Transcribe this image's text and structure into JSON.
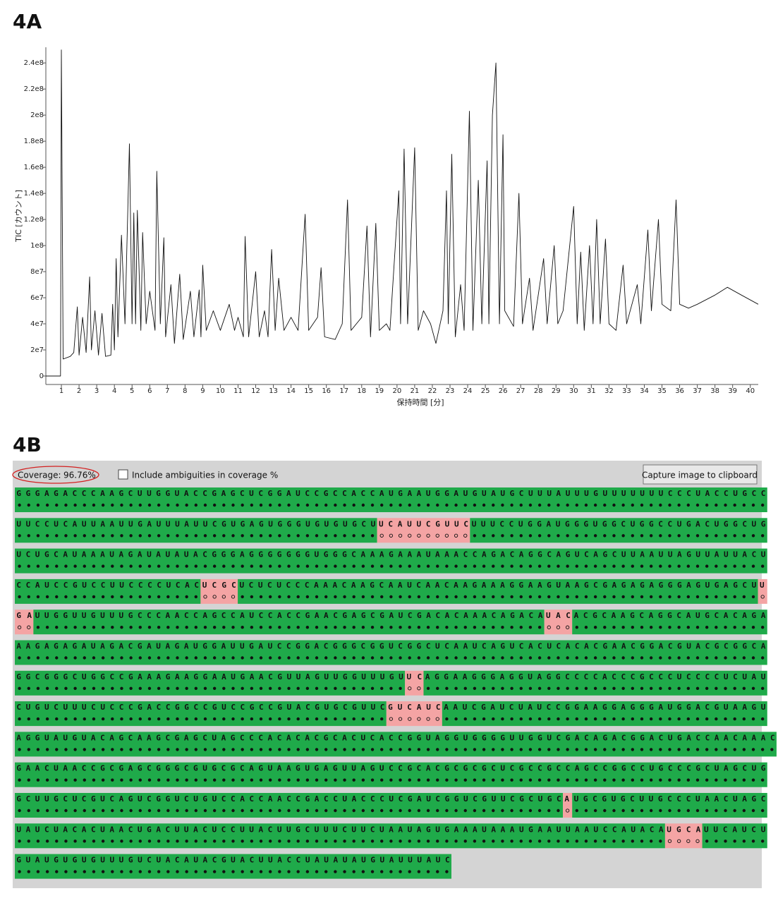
{
  "chart_data": {
    "type": "line",
    "panel_label": "4A",
    "y_label": "TIC [カウント]",
    "x_label": "保持時間 [分]",
    "xlim": [
      0.12,
      40.45
    ],
    "ylim": [
      -6500000.0,
      252000000.0
    ],
    "xticks": [
      1,
      2,
      3,
      4,
      5,
      6,
      7,
      8,
      9,
      10,
      11,
      12,
      13,
      14,
      15,
      16,
      17,
      18,
      19,
      20,
      21,
      22,
      23,
      24,
      25,
      26,
      27,
      28,
      29,
      30,
      31,
      32,
      33,
      34,
      35,
      36,
      37,
      38,
      39,
      40
    ],
    "yticks": [
      0,
      {
        "value": 20000000.0,
        "label": "2e7"
      },
      {
        "value": 40000000.0,
        "label": "4e7"
      },
      {
        "value": 60000000.0,
        "label": "6e7"
      },
      {
        "value": 80000000.0,
        "label": "8e7"
      },
      {
        "value": 100000000.0,
        "label": "1e8"
      },
      {
        "value": 120000000.0,
        "label": "1.2e8"
      },
      {
        "value": 140000000.0,
        "label": "1.4e8"
      },
      {
        "value": 160000000.0,
        "label": "1.6e8"
      },
      {
        "value": 180000000.0,
        "label": "1.8e8"
      },
      {
        "value": 200000000.0,
        "label": "2e8"
      },
      {
        "value": 220000000.0,
        "label": "2.2e8"
      },
      {
        "value": 240000000.0,
        "label": "2.4e8"
      }
    ],
    "series": [
      {
        "color": "#111111",
        "x": [
          0.12,
          0.95,
          1.0,
          1.1,
          1.5,
          1.7,
          1.9,
          2.0,
          2.2,
          2.4,
          2.6,
          2.7,
          2.9,
          3.1,
          3.3,
          3.5,
          3.8,
          3.9,
          4.0,
          4.1,
          4.2,
          4.4,
          4.6,
          4.85,
          5.0,
          5.1,
          5.2,
          5.3,
          5.5,
          5.6,
          5.8,
          6.0,
          6.3,
          6.4,
          6.6,
          6.8,
          6.9,
          7.2,
          7.4,
          7.7,
          7.9,
          8.3,
          8.5,
          8.8,
          8.9,
          9.0,
          9.2,
          9.6,
          10.0,
          10.5,
          10.8,
          11.0,
          11.3,
          11.4,
          11.6,
          12.0,
          12.2,
          12.5,
          12.7,
          12.9,
          13.1,
          13.3,
          13.6,
          14.0,
          14.4,
          14.8,
          15.0,
          15.5,
          15.7,
          15.9,
          16.5,
          16.9,
          17.2,
          17.4,
          18.0,
          18.3,
          18.5,
          18.8,
          19.0,
          19.4,
          19.6,
          20.1,
          20.2,
          20.4,
          20.6,
          21.0,
          21.2,
          21.5,
          21.9,
          22.2,
          22.6,
          22.8,
          22.9,
          23.1,
          23.3,
          23.6,
          23.8,
          24.1,
          24.3,
          24.6,
          24.8,
          25.1,
          25.2,
          25.4,
          25.6,
          25.8,
          26.0,
          26.1,
          26.6,
          26.9,
          27.1,
          27.5,
          27.7,
          28.3,
          28.5,
          28.9,
          29.1,
          29.4,
          30.0,
          30.2,
          30.4,
          30.6,
          30.9,
          31.1,
          31.3,
          31.5,
          31.8,
          32.0,
          32.4,
          32.8,
          33.0,
          33.6,
          33.8,
          34.2,
          34.4,
          34.8,
          35.0,
          35.5,
          35.8,
          36.0,
          36.5,
          37.0,
          38.0,
          38.7,
          39.5,
          40.45
        ],
        "values": [
          0,
          0,
          250000000.0,
          13000000.0,
          15000000.0,
          18000000.0,
          53000000.0,
          16000000.0,
          45000000.0,
          18000000.0,
          76000000.0,
          20000000.0,
          50000000.0,
          16000000.0,
          48000000.0,
          15000000.0,
          16000000.0,
          55000000.0,
          20000000.0,
          90000000.0,
          30000000.0,
          108000000.0,
          40000000.0,
          178000000.0,
          40000000.0,
          125000000.0,
          40000000.0,
          127000000.0,
          35000000.0,
          110000000.0,
          40000000.0,
          65000000.0,
          35000000.0,
          157000000.0,
          40000000.0,
          106000000.0,
          30000000.0,
          70000000.0,
          25000000.0,
          78000000.0,
          28000000.0,
          65000000.0,
          30000000.0,
          66000000.0,
          30000000.0,
          85000000.0,
          35000000.0,
          50000000.0,
          35000000.0,
          55000000.0,
          35000000.0,
          45000000.0,
          30000000.0,
          107000000.0,
          30000000.0,
          80000000.0,
          30000000.0,
          50000000.0,
          30000000.0,
          97000000.0,
          35000000.0,
          75000000.0,
          35000000.0,
          45000000.0,
          35000000.0,
          124000000.0,
          35000000.0,
          45000000.0,
          83000000.0,
          30000000.0,
          28000000.0,
          40000000.0,
          135000000.0,
          35000000.0,
          45000000.0,
          115000000.0,
          30000000.0,
          117000000.0,
          35000000.0,
          40000000.0,
          35000000.0,
          142000000.0,
          40000000.0,
          174000000.0,
          40000000.0,
          175000000.0,
          35000000.0,
          50000000.0,
          40000000.0,
          25000000.0,
          50000000.0,
          142000000.0,
          40000000.0,
          170000000.0,
          30000000.0,
          70000000.0,
          35000000.0,
          203000000.0,
          35000000.0,
          150000000.0,
          40000000.0,
          165000000.0,
          40000000.0,
          200000000.0,
          240000000.0,
          40000000.0,
          185000000.0,
          50000000.0,
          38000000.0,
          140000000.0,
          40000000.0,
          75000000.0,
          35000000.0,
          90000000.0,
          40000000.0,
          100000000.0,
          40000000.0,
          50000000.0,
          130000000.0,
          40000000.0,
          95000000.0,
          35000000.0,
          100000000.0,
          40000000.0,
          120000000.0,
          40000000.0,
          105000000.0,
          40000000.0,
          35000000.0,
          85000000.0,
          40000000.0,
          70000000.0,
          40000000.0,
          112000000.0,
          50000000.0,
          120000000.0,
          55000000.0,
          50000000.0,
          135000000.0,
          55000000.0,
          52000000.0,
          55000000.0,
          62000000.0,
          68000000.0,
          62000000.0,
          55000000.0
        ]
      }
    ]
  },
  "coverage_panel": {
    "panel_label": "4B",
    "coverage_label": "Coverage:",
    "coverage_value": "96.76%",
    "checkbox_label": "Include ambiguities in coverage %",
    "button_label": "Capture image to clipboard",
    "rows": [
      [
        {
          "text": "GGGAGACCCAAGCUUGGUACCGAGCUCGGAUCCGCCACCAUGAAUGGAUGUAUGCUUUAUUUGUUUUUUUCCCUACCUGCC",
          "covered": true
        }
      ],
      [
        {
          "text": "UUCCUCAUUAAUUGAUUUAUUCGUGAGUGGGUGUGUGCU",
          "covered": true
        },
        {
          "text": "UCAUUCGUUC",
          "covered": false
        },
        {
          "text": "UUUCCUGGAUGGGUGGCUGGCCUGACUGGCUG",
          "covered": true
        }
      ],
      [
        {
          "text": "UCUGCAUAAAUAGAUAUAUACGGGAGGGGGGGUGGGCAAAGAAAUAAACCAGACAGGCAGUCAGCUUAAUUAGUUAUUACU",
          "covered": true
        }
      ],
      [
        {
          "text": "CCAUCCGUCCUUCCCCUCAC",
          "covered": true
        },
        {
          "text": "UCGC",
          "covered": false
        },
        {
          "text": "UCUCUCCCAAACAAGCAAUCAACAAGAAAGGAAGUAAGCGAGAGAGGGAGUGAGCU",
          "covered": true
        },
        {
          "text": "U",
          "covered": false
        }
      ],
      [
        {
          "text": "GA",
          "covered": false
        },
        {
          "text": "UUGGUUGUUUGCCCAACCAGCCAUCCACCGAACGAGCGAUCGACACAAACAGACA",
          "covered": true
        },
        {
          "text": "UAC",
          "covered": false
        },
        {
          "text": "ACGCAAGCAGGCAUGCACAGA",
          "covered": true
        }
      ],
      [
        {
          "text": "AAGAGAGAUAGACGAUAGAUGGAUUGAUCCGGACGGGCGGUCGGCUCAAUCAGUCACUCACACGAACGGACGUACGCGGCA",
          "covered": true
        }
      ],
      [
        {
          "text": "GGCGGGCUGGCCGAAAGAAGGAAUGAACGUUAGUUGGUUUGU",
          "covered": true
        },
        {
          "text": "UC",
          "covered": false
        },
        {
          "text": "AGGAAGGGAGGUAGGCCCCACCCGCCCUCCCCUCUAU",
          "covered": true
        }
      ],
      [
        {
          "text": "CUGUCUUUCUCCCGACCGGCCGUCCGCCGUACGUGCGUUC",
          "covered": true
        },
        {
          "text": "GUCAUC",
          "covered": false
        },
        {
          "text": "AAUCGAUCUAUCCGGAAGGAGGGAUGGACGUAAGU",
          "covered": true
        }
      ],
      [
        {
          "text": "AGGUAUGUACAGCAAGCGAGCUAGCCCACACACGCACUCACCGGUAGGUGGGGUUGGUCGACAGACGGACUGACCAACAAAC",
          "covered": true
        }
      ],
      [
        {
          "text": "GAACUAACCGCGAGCGGGCGUGCGCAGUAAGUGAGUUAGUCCGCACGCGCGCUCGCCGCCAGCCGGCCUGCCCGCUAGCUG",
          "covered": true
        }
      ],
      [
        {
          "text": "GCUUGCUCGUCAGUCGGUCUGUCCACCAACCGACCUACCCUCGAUCGGUCGUUCGCUGC",
          "covered": true
        },
        {
          "text": "A",
          "covered": false
        },
        {
          "text": "UGCGUGCUUGCCCUAACUAGC",
          "covered": true
        }
      ],
      [
        {
          "text": "UAUCUACACUAACUGACUUACUCCUUACUUGCUUUCUUCUAAUAGUGAAAUAAAUGAAUUAAUCCAUACA",
          "covered": true
        },
        {
          "text": "UGCA",
          "covered": false
        },
        {
          "text": "UUCAUCU",
          "covered": true
        }
      ],
      [
        {
          "text": "GUAUGUGUGUUUGUCUACAUACGUACUUACCUAUAUAUGUAUUUAUC",
          "covered": true
        }
      ]
    ]
  }
}
